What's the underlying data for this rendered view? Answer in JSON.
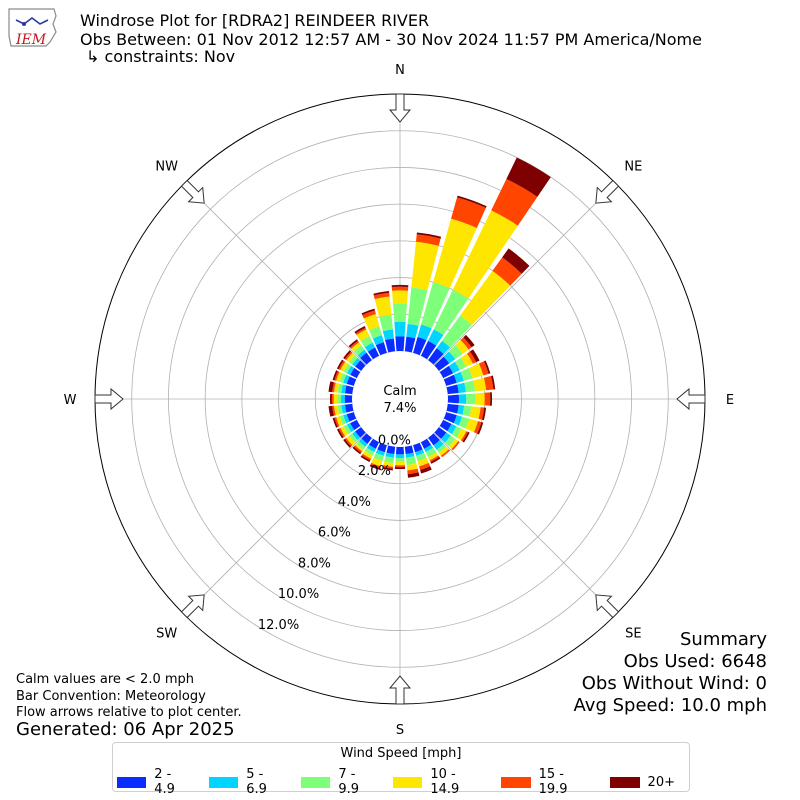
{
  "header": {
    "title_line1": "Windrose Plot for [RDRA2] REINDEER RIVER",
    "title_line2": "Obs Between: 01 Nov 2012 12:57 AM - 30 Nov 2024 11:57 PM America/Nome",
    "title_line3": "↳ constraints: Nov",
    "logo_text": "IEM"
  },
  "notes": {
    "calm_note": "Calm values are < 2.0 mph",
    "bar_convention": "Bar Convention: Meteorology",
    "flow_note": "Flow arrows relative to plot center.",
    "generated": "Generated: 06 Apr 2025"
  },
  "summary": {
    "heading": "Summary",
    "obs_used": "Obs Used: 6648",
    "obs_without_wind": "Obs Without Wind: 0",
    "avg_speed": "Avg Speed: 10.0 mph"
  },
  "chart_data": {
    "type": "windrose",
    "calm_label": "Calm",
    "calm_value": "7.4%",
    "radial_ticks": [
      "0.0%",
      "2.0%",
      "4.0%",
      "6.0%",
      "8.0%",
      "10.0%",
      "12.0%"
    ],
    "radial_range": [
      0,
      14
    ],
    "compass_labels": [
      "N",
      "NE",
      "E",
      "SE",
      "S",
      "SW",
      "W",
      "NW"
    ],
    "legend_title": "Wind Speed [mph]",
    "bins": [
      {
        "label": "2 - 4.9",
        "color": "#0a2cff"
      },
      {
        "label": "5 - 6.9",
        "color": "#00d4ff"
      },
      {
        "label": "7 - 9.9",
        "color": "#7dff7a"
      },
      {
        "label": "10 - 14.9",
        "color": "#ffe600"
      },
      {
        "label": "15 - 19.9",
        "color": "#ff4500"
      },
      {
        "label": "20+",
        "color": "#7f0000"
      }
    ],
    "directions_deg": [
      0,
      10,
      20,
      30,
      40,
      50,
      60,
      70,
      80,
      90,
      100,
      110,
      120,
      130,
      140,
      150,
      160,
      170,
      180,
      190,
      200,
      210,
      220,
      230,
      240,
      250,
      260,
      270,
      280,
      290,
      300,
      310,
      320,
      330,
      340,
      350
    ],
    "cumulative": [
      [
        0.8,
        1.6,
        2.6,
        3.3,
        3.5,
        3.6
      ],
      [
        0.8,
        1.5,
        3.5,
        6.0,
        6.4,
        6.5
      ],
      [
        0.9,
        1.6,
        4.0,
        7.6,
        8.8,
        8.9
      ],
      [
        0.9,
        1.6,
        4.0,
        8.8,
        10.7,
        12.0
      ],
      [
        0.8,
        1.3,
        3.0,
        6.0,
        6.9,
        7.5
      ],
      [
        0.7,
        1.1,
        1.6,
        2.0,
        2.2,
        2.4
      ],
      [
        0.6,
        1.0,
        1.4,
        1.8,
        2.0,
        2.2
      ],
      [
        0.6,
        1.0,
        1.5,
        2.1,
        2.4,
        2.5
      ],
      [
        0.6,
        1.0,
        1.5,
        2.1,
        2.5,
        2.6
      ],
      [
        0.6,
        1.0,
        1.5,
        2.0,
        2.3,
        2.4
      ],
      [
        0.6,
        0.9,
        1.3,
        1.8,
        2.0,
        2.1
      ],
      [
        0.6,
        0.9,
        1.3,
        1.8,
        2.0,
        2.1
      ],
      [
        0.5,
        0.8,
        1.1,
        1.4,
        1.5,
        1.6
      ],
      [
        0.5,
        0.8,
        1.1,
        1.3,
        1.4,
        1.4
      ],
      [
        0.5,
        0.8,
        1.0,
        1.2,
        1.3,
        1.3
      ],
      [
        0.4,
        0.6,
        0.9,
        1.1,
        1.2,
        1.3
      ],
      [
        0.4,
        0.6,
        0.9,
        1.2,
        1.4,
        1.6
      ],
      [
        0.4,
        0.6,
        1.0,
        1.3,
        1.5,
        1.7
      ],
      [
        0.4,
        0.6,
        0.8,
        1.0,
        1.1,
        1.2
      ],
      [
        0.4,
        0.6,
        0.9,
        1.1,
        1.2,
        1.3
      ],
      [
        0.4,
        0.6,
        0.9,
        1.2,
        1.3,
        1.4
      ],
      [
        0.4,
        0.6,
        0.8,
        1.0,
        1.1,
        1.2
      ],
      [
        0.4,
        0.6,
        0.8,
        0.9,
        1.0,
        1.1
      ],
      [
        0.4,
        0.6,
        0.8,
        1.0,
        1.1,
        1.2
      ],
      [
        0.4,
        0.6,
        0.8,
        1.0,
        1.1,
        1.2
      ],
      [
        0.4,
        0.6,
        0.8,
        1.0,
        1.1,
        1.2
      ],
      [
        0.4,
        0.6,
        0.8,
        1.0,
        1.1,
        1.3
      ],
      [
        0.4,
        0.6,
        0.8,
        1.0,
        1.1,
        1.2
      ],
      [
        0.4,
        0.6,
        0.8,
        1.0,
        1.1,
        1.3
      ],
      [
        0.4,
        0.6,
        0.8,
        1.0,
        1.1,
        1.2
      ],
      [
        0.4,
        0.6,
        0.8,
        1.0,
        1.1,
        1.2
      ],
      [
        0.4,
        0.6,
        0.8,
        1.0,
        1.1,
        1.2
      ],
      [
        0.5,
        0.7,
        1.0,
        1.2,
        1.3,
        1.4
      ],
      [
        0.5,
        0.8,
        1.2,
        1.6,
        1.7,
        1.8
      ],
      [
        0.6,
        1.0,
        1.5,
        2.2,
        2.4,
        2.5
      ],
      [
        0.7,
        1.2,
        2.0,
        3.0,
        3.2,
        3.3
      ]
    ]
  }
}
